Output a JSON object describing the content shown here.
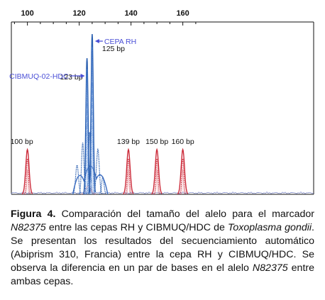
{
  "chart_data": {
    "type": "line",
    "x_axis": {
      "range": [
        93,
        165
      ],
      "ticks": [
        100,
        120,
        140,
        160
      ],
      "position": "top"
    },
    "grid": false,
    "series": [
      {
        "color": "#cc2b3a",
        "peaks": [
          {
            "x": 100,
            "label": "100 bp",
            "height": 0.26
          },
          {
            "x": 139,
            "label": "139 bp",
            "height": 0.26
          },
          {
            "x": 150,
            "label": "150 bp",
            "height": 0.26
          },
          {
            "x": 160,
            "label": "160 bp",
            "height": 0.26
          }
        ]
      },
      {
        "color": "#2a5fb0",
        "peaks": [
          {
            "x": 123,
            "label": "123 bp",
            "height": 0.79
          },
          {
            "x": 125,
            "label": "125 bp",
            "height": 0.93
          }
        ]
      }
    ],
    "annotations": [
      {
        "text": "CEPA RH",
        "target_x": 125,
        "color": "#4a4fd6"
      },
      {
        "text": "CIBMUQ-02-HDC",
        "target_x": 123,
        "color": "#4a4fd6"
      }
    ]
  },
  "caption": {
    "figure_label": "Figura 4.",
    "part1": " Comparación del tamaño del alelo para el marcador ",
    "marker1": "N82375",
    "part2": " entre las cepas RH y CIBMUQ/HDC de ",
    "organism": "Toxoplasma gondii",
    "part3": ". Se presentan los resultados del secuenciamiento automático (Abiprism 310, Francia) entre la cepa RH y CIBMUQ/HDC. Se observa la diferencia en un par de bases en el alelo ",
    "marker2": "N82375",
    "part4": " entre ambas cepas."
  }
}
